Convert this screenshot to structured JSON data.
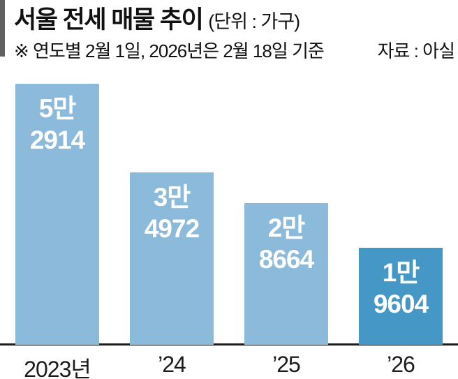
{
  "header": {
    "title": "서울 전세 매물 추이",
    "unit": "(단위 : 가구)",
    "note": "※ 연도별 2월 1일, 2026년은 2월 18일 기준",
    "source": "자료 : 아실"
  },
  "chart_data": {
    "type": "bar",
    "title": "서울 전세 매물 추이",
    "unit_label": "(단위 : 가구)",
    "note": "※ 연도별 2월 1일, 2026년은 2월 18일 기준",
    "source": "자료 : 아실",
    "categories": [
      "2023년",
      "’24",
      "’25",
      "’26"
    ],
    "values": [
      52914,
      34972,
      28664,
      19604
    ],
    "bar_labels": [
      [
        "5만",
        "2914"
      ],
      [
        "3만",
        "4972"
      ],
      [
        "2만",
        "8664"
      ],
      [
        "1만",
        "9604"
      ]
    ],
    "bar_colors": [
      "#8cbada",
      "#8cbada",
      "#8cbada",
      "#4597c6"
    ],
    "highlight_index": 3,
    "ylim": [
      0,
      52914
    ],
    "grid": false,
    "legend": "none",
    "xlabel": "",
    "ylabel": ""
  },
  "colors": {
    "bar_light": "#8cbada",
    "bar_highlight": "#4597c6",
    "axis_line": "#1c1c1c",
    "accent_bar": "#606060",
    "text": "#111111",
    "bar_value_text": "#ffffff"
  }
}
